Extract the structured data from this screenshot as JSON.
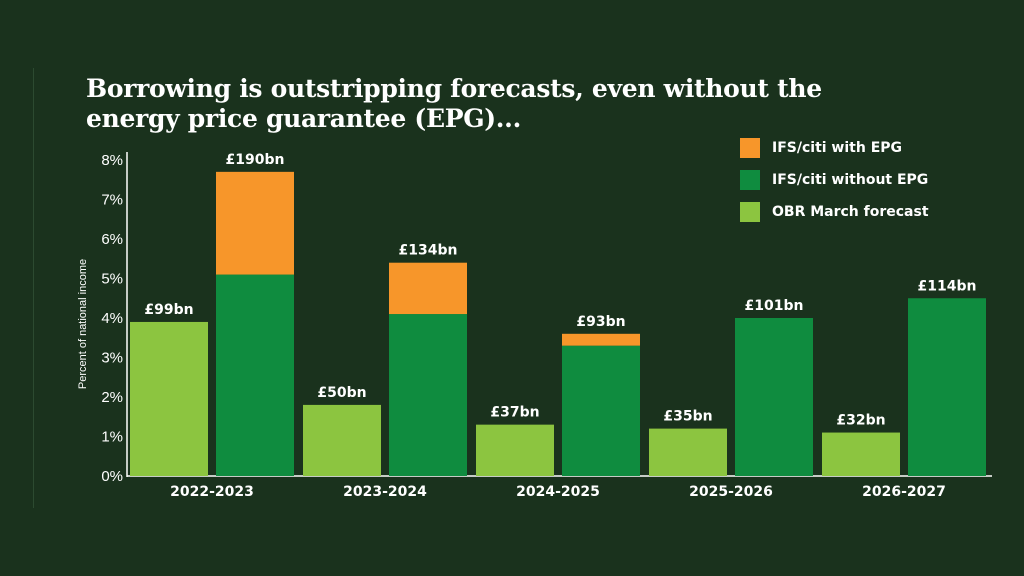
{
  "title_lines": [
    "Borrowing is outstripping forecasts, even without the",
    "energy price guarantee (EPG)..."
  ],
  "colors": {
    "with_epg": "#f7962a",
    "without_epg": "#0f8c3f",
    "obr": "#8cc540",
    "background": "#1a321d"
  },
  "legend": [
    {
      "label": "IFS/citi with EPG",
      "color": "#f7962a"
    },
    {
      "label": "IFS/citi without EPG",
      "color": "#0f8c3f"
    },
    {
      "label": "OBR March forecast",
      "color": "#8cc540"
    }
  ],
  "chart_data": {
    "type": "bar",
    "title": "Borrowing is outstripping forecasts, even without the energy price guarantee (EPG)...",
    "ylabel": "Percent of national income",
    "ylim": [
      0,
      8
    ],
    "yticks": [
      "0%",
      "1%",
      "2%",
      "3%",
      "4%",
      "5%",
      "6%",
      "7%",
      "8%"
    ],
    "categories": [
      "2022-2023",
      "2023-2024",
      "2024-2025",
      "2025-2026",
      "2026-2027"
    ],
    "series": [
      {
        "name": "OBR March forecast",
        "values": [
          3.9,
          1.8,
          1.3,
          1.2,
          1.1
        ]
      },
      {
        "name": "IFS/citi without EPG",
        "values": [
          5.1,
          4.1,
          3.3,
          4.0,
          4.5
        ]
      },
      {
        "name": "IFS/citi with EPG",
        "values": [
          7.7,
          5.4,
          3.6,
          4.0,
          4.5
        ]
      }
    ],
    "obr_labels": [
      "£99bn",
      "£50bn",
      "£37bn",
      "£35bn",
      "£32bn"
    ],
    "ifs_labels": [
      "£190bn",
      "£134bn",
      "£93bn",
      "£101bn",
      "£114bn"
    ],
    "grid": false,
    "legend_position": "top-right"
  }
}
